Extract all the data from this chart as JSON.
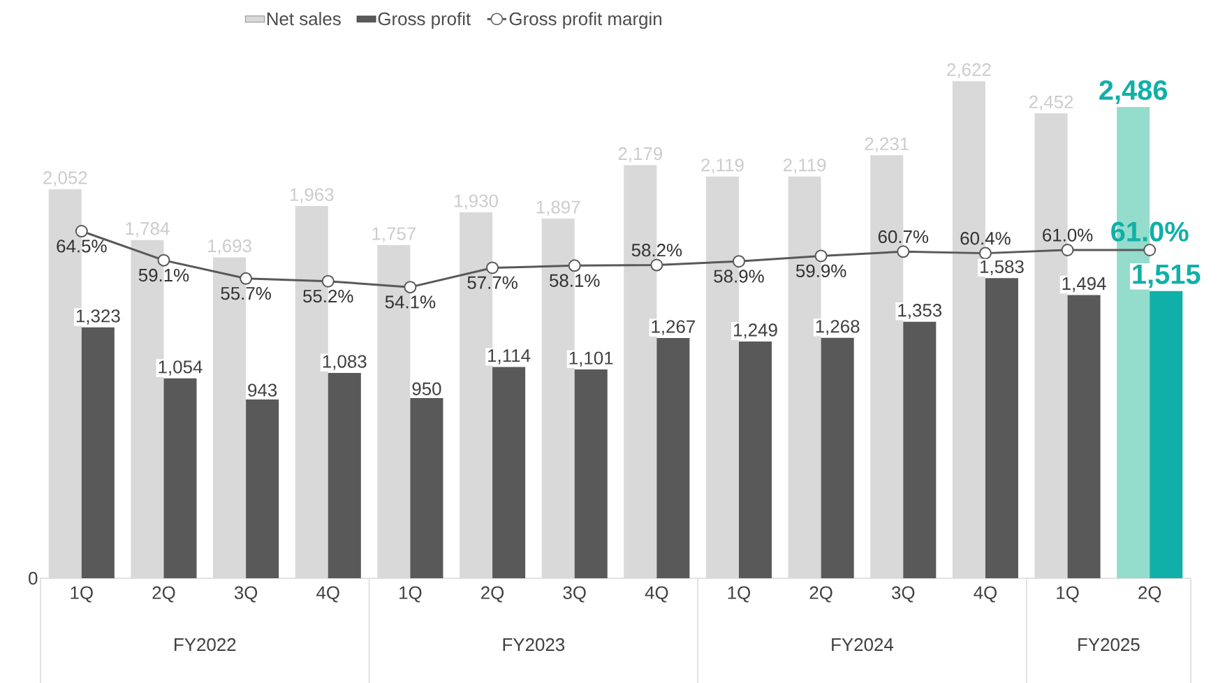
{
  "chart_data": {
    "type": "bar",
    "categories": [
      "1Q",
      "2Q",
      "3Q",
      "4Q",
      "1Q",
      "2Q",
      "3Q",
      "4Q",
      "1Q",
      "2Q",
      "3Q",
      "4Q",
      "1Q",
      "2Q"
    ],
    "series": [
      {
        "name": "Net sales",
        "color": "#d9d9d9",
        "colors": [
          "#d9d9d9",
          "#d9d9d9",
          "#d9d9d9",
          "#d9d9d9",
          "#d9d9d9",
          "#d9d9d9",
          "#d9d9d9",
          "#d9d9d9",
          "#d9d9d9",
          "#d9d9d9",
          "#d9d9d9",
          "#d9d9d9",
          "#d9d9d9",
          "#94dccb"
        ],
        "values": [
          2052,
          1784,
          1693,
          1963,
          1757,
          1930,
          1897,
          2179,
          2119,
          2119,
          2231,
          2622,
          2452,
          2486
        ],
        "value_labels": [
          "2,052",
          "1,784",
          "1,693",
          "1,963",
          "1,757",
          "1,930",
          "1,897",
          "2,179",
          "2,119",
          "2,119",
          "2,231",
          "2,622",
          "2,452",
          "2,486"
        ]
      },
      {
        "name": "Gross profit",
        "color": "#595959",
        "colors": [
          "#595959",
          "#595959",
          "#595959",
          "#595959",
          "#595959",
          "#595959",
          "#595959",
          "#595959",
          "#595959",
          "#595959",
          "#595959",
          "#595959",
          "#595959",
          "#10b0a8"
        ],
        "values": [
          1323,
          1054,
          943,
          1083,
          950,
          1114,
          1101,
          1267,
          1249,
          1268,
          1353,
          1583,
          1494,
          1515
        ],
        "value_labels": [
          "1,323",
          "1,054",
          "943",
          "1,083",
          "950",
          "1,114",
          "1,101",
          "1,267",
          "1,249",
          "1,268",
          "1,353",
          "1,583",
          "1,494",
          "1,515"
        ]
      },
      {
        "name": "Gross profit margin",
        "type": "line",
        "axis": "y2",
        "color": "#595959",
        "values": [
          64.5,
          59.1,
          55.7,
          55.2,
          54.1,
          57.7,
          58.1,
          58.2,
          58.9,
          59.9,
          60.7,
          60.4,
          61.0,
          61.0
        ],
        "value_labels": [
          "64.5%",
          "59.1%",
          "55.7%",
          "55.2%",
          "54.1%",
          "57.7%",
          "58.1%",
          "58.2%",
          "58.9%",
          "59.9%",
          "60.7%",
          "60.4%",
          "61.0%",
          "61.0%"
        ]
      }
    ],
    "annotations": [
      "FY2022",
      "FY2023",
      "FY2024",
      "FY2025",
      "0"
    ],
    "legend": "top",
    "marker": "circle",
    "line_style": "solid",
    "grid": false
  }
}
